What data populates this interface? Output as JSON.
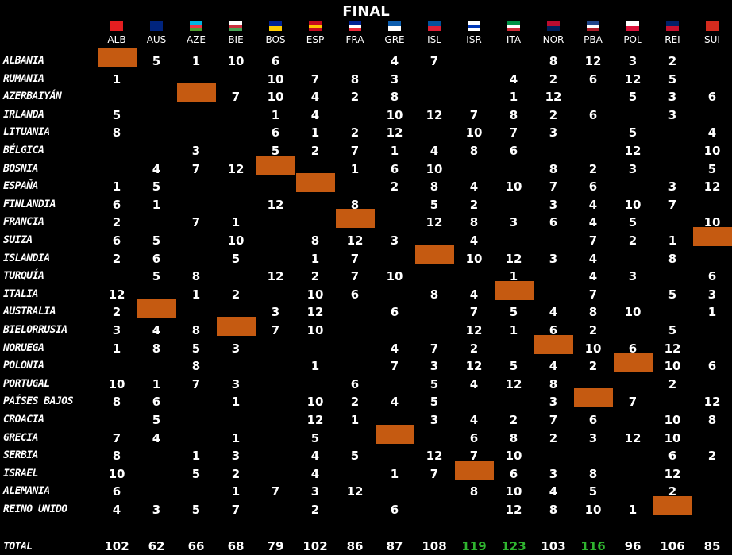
{
  "title": "FINAL",
  "columns": [
    "ALB",
    "AUS",
    "AZE",
    "BIE",
    "BOS",
    "ESP",
    "FRA",
    "GRE",
    "ISL",
    "ISR",
    "ITA",
    "NOR",
    "PBA",
    "POL",
    "REI",
    "SUI"
  ],
  "rows": [
    {
      "label": "Albania",
      "own": "ALB",
      "cells": [
        null,
        5,
        1,
        10,
        6,
        null,
        null,
        4,
        7,
        null,
        null,
        8,
        12,
        3,
        2,
        null
      ]
    },
    {
      "label": "Rumania",
      "cells": [
        1,
        null,
        null,
        null,
        10,
        7,
        8,
        3,
        null,
        null,
        4,
        2,
        6,
        12,
        5,
        null
      ]
    },
    {
      "label": "Azerbaiyán",
      "own": "AZE",
      "cells": [
        null,
        null,
        null,
        7,
        10,
        4,
        2,
        8,
        null,
        null,
        1,
        12,
        null,
        5,
        3,
        6
      ]
    },
    {
      "label": "Irlanda",
      "cells": [
        5,
        null,
        null,
        null,
        1,
        4,
        null,
        10,
        12,
        7,
        8,
        2,
        6,
        null,
        3,
        null
      ]
    },
    {
      "label": "Lituania",
      "cells": [
        8,
        null,
        null,
        null,
        6,
        1,
        2,
        12,
        null,
        10,
        7,
        3,
        null,
        5,
        null,
        4
      ]
    },
    {
      "label": "Bélgica",
      "cells": [
        null,
        null,
        3,
        null,
        5,
        2,
        7,
        1,
        4,
        8,
        6,
        null,
        null,
        12,
        null,
        10
      ]
    },
    {
      "label": "Bosnia",
      "own": "BOS",
      "cells": [
        null,
        4,
        7,
        12,
        null,
        null,
        1,
        6,
        10,
        null,
        null,
        8,
        2,
        3,
        null,
        5
      ]
    },
    {
      "label": "España",
      "own": "ESP",
      "cells": [
        1,
        5,
        null,
        null,
        null,
        null,
        null,
        2,
        8,
        4,
        10,
        7,
        6,
        null,
        3,
        12
      ]
    },
    {
      "label": "Finlandia",
      "cells": [
        6,
        1,
        null,
        null,
        12,
        null,
        8,
        null,
        5,
        2,
        null,
        3,
        4,
        10,
        7,
        null
      ]
    },
    {
      "label": "Francia",
      "own": "FRA",
      "cells": [
        2,
        null,
        7,
        1,
        null,
        null,
        null,
        null,
        12,
        8,
        3,
        6,
        4,
        5,
        null,
        10
      ]
    },
    {
      "label": "Suiza",
      "own": "SUI",
      "cells": [
        6,
        5,
        null,
        10,
        null,
        8,
        12,
        3,
        null,
        4,
        null,
        null,
        7,
        2,
        1,
        null
      ]
    },
    {
      "label": "Islandia",
      "own": "ISL",
      "cells": [
        2,
        6,
        null,
        5,
        null,
        1,
        7,
        null,
        null,
        10,
        12,
        3,
        4,
        null,
        8,
        null
      ]
    },
    {
      "label": "Turquía",
      "cells": [
        null,
        5,
        8,
        null,
        12,
        2,
        7,
        10,
        null,
        null,
        1,
        null,
        4,
        3,
        null,
        6
      ]
    },
    {
      "label": "Italia",
      "own": "ITA",
      "cells": [
        12,
        null,
        1,
        2,
        null,
        10,
        6,
        null,
        8,
        4,
        null,
        null,
        7,
        null,
        5,
        3
      ]
    },
    {
      "label": "Australia",
      "own": "AUS",
      "cells": [
        2,
        null,
        null,
        null,
        3,
        12,
        null,
        6,
        null,
        7,
        5,
        4,
        8,
        10,
        null,
        1
      ]
    },
    {
      "label": "Bielorrusia",
      "own": "BIE",
      "cells": [
        3,
        4,
        8,
        null,
        7,
        10,
        null,
        null,
        null,
        12,
        1,
        6,
        2,
        null,
        5,
        null
      ]
    },
    {
      "label": "Noruega",
      "own": "NOR",
      "cells": [
        1,
        8,
        5,
        3,
        null,
        null,
        null,
        4,
        7,
        2,
        null,
        null,
        10,
        6,
        12,
        null
      ]
    },
    {
      "label": "Polonia",
      "own": "POL",
      "cells": [
        null,
        null,
        8,
        null,
        null,
        1,
        null,
        7,
        3,
        12,
        5,
        4,
        2,
        null,
        10,
        6
      ]
    },
    {
      "label": "Portugal",
      "cells": [
        10,
        1,
        7,
        3,
        null,
        null,
        6,
        null,
        5,
        4,
        12,
        8,
        null,
        null,
        2,
        null
      ]
    },
    {
      "label": "Países Bajos",
      "own": "PBA",
      "cells": [
        8,
        6,
        null,
        1,
        null,
        10,
        2,
        4,
        5,
        null,
        null,
        3,
        null,
        7,
        null,
        12
      ]
    },
    {
      "label": "Croacia",
      "cells": [
        null,
        5,
        null,
        null,
        null,
        12,
        1,
        null,
        3,
        4,
        2,
        7,
        6,
        null,
        10,
        8
      ]
    },
    {
      "label": "Grecia",
      "own": "GRE",
      "cells": [
        7,
        4,
        null,
        1,
        null,
        5,
        null,
        null,
        null,
        6,
        8,
        2,
        3,
        12,
        10,
        null
      ]
    },
    {
      "label": "Serbia",
      "cells": [
        8,
        null,
        1,
        3,
        null,
        4,
        5,
        null,
        12,
        7,
        10,
        null,
        null,
        null,
        6,
        2
      ]
    },
    {
      "label": "Israel",
      "own": "ISR",
      "cells": [
        10,
        null,
        5,
        2,
        null,
        4,
        null,
        1,
        7,
        null,
        6,
        3,
        8,
        null,
        12,
        null
      ]
    },
    {
      "label": "Alemania",
      "cells": [
        6,
        null,
        null,
        1,
        7,
        3,
        12,
        null,
        null,
        8,
        10,
        4,
        5,
        null,
        2,
        null
      ]
    },
    {
      "label": "Reino Unido",
      "own": "REI",
      "cells": [
        4,
        3,
        5,
        7,
        null,
        2,
        null,
        6,
        null,
        null,
        12,
        8,
        10,
        1,
        null,
        null
      ]
    }
  ],
  "total_label": "Total",
  "totals": [
    102,
    62,
    66,
    68,
    79,
    102,
    86,
    87,
    108,
    119,
    123,
    103,
    116,
    96,
    106,
    85
  ],
  "leaders": [
    "ISR",
    "ITA",
    "PBA"
  ],
  "leader_color": "#2fb52f"
}
